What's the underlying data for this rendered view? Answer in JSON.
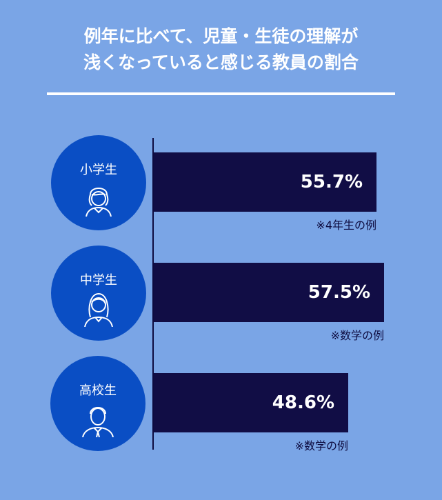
{
  "title_lines": [
    "例年に比べて、児童・生徒の理解が",
    "浅くなっていると感じる教員の割合"
  ],
  "colors": {
    "background": "#7aa5e6",
    "bar": "#110d45",
    "circle": "#0a4ec4",
    "text_light": "#ffffff",
    "text_dark": "#0d0b3f"
  },
  "chart_data": {
    "type": "bar",
    "orientation": "horizontal",
    "title": "例年に比べて、児童・生徒の理解が浅くなっていると感じる教員の割合",
    "categories": [
      "小学生",
      "中学生",
      "高校生"
    ],
    "values": [
      55.7,
      57.5,
      48.6
    ],
    "value_labels": [
      "55.7%",
      "57.5%",
      "48.6%"
    ],
    "notes": [
      "※4年生の例",
      "※数学の例",
      "※数学の例"
    ],
    "icons": [
      "girl-child-icon",
      "girl-student-icon",
      "boy-student-icon"
    ],
    "unit": "%",
    "grid": false,
    "legend": "none"
  }
}
